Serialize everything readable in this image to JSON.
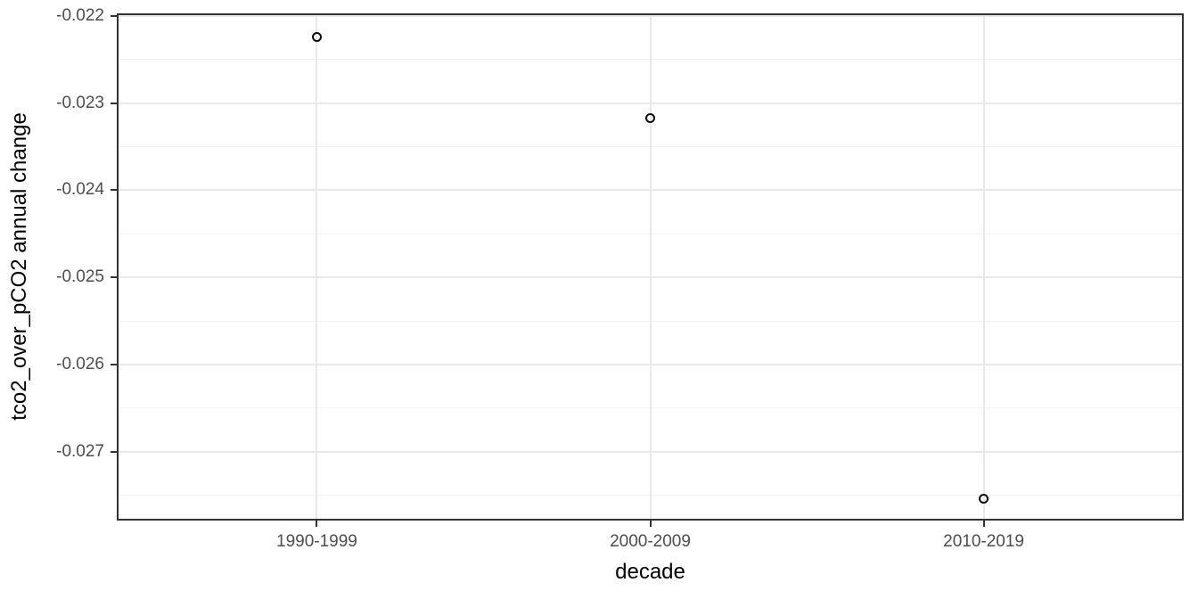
{
  "chart_data": {
    "type": "scatter",
    "title": "",
    "xlabel": "decade",
    "ylabel": "tco2_over_pCO2 annual change",
    "categories": [
      "1990-1999",
      "2000-2009",
      "2010-2019"
    ],
    "values": [
      -0.02224,
      -0.02317,
      -0.02754
    ],
    "y_ticks": [
      -0.022,
      -0.023,
      -0.024,
      -0.025,
      -0.026,
      -0.027
    ],
    "y_tick_labels": [
      "-0.022",
      "-0.023",
      "-0.024",
      "-0.025",
      "-0.026",
      "-0.027"
    ],
    "y_minor_gridlines": [
      -0.0225,
      -0.0235,
      -0.0245,
      -0.0255,
      -0.0265,
      -0.0275
    ],
    "ylim": [
      -0.02779,
      -0.02197
    ],
    "grid": true,
    "legend": "none",
    "marker": "open-circle",
    "colors": {
      "point": "#0a0a0a",
      "grid_major": "#e9e9e9",
      "grid_minor": "#f2f2f2",
      "panel_border": "#333333",
      "tick_mark": "#333333",
      "tick_label": "#4d4d4d",
      "axis_title": "#000000",
      "background": "#ffffff"
    }
  }
}
